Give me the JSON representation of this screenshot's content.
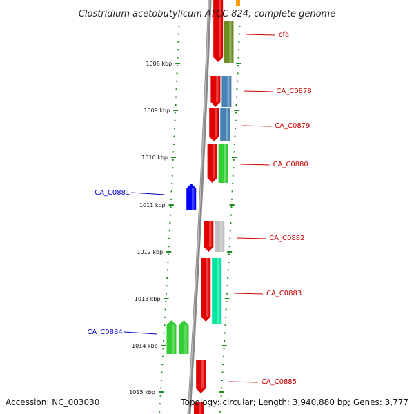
{
  "title": "Clostridium acetobutylicum ATCC 824, complete genome",
  "accession": "Accession: NC_003030",
  "topology": "Topology: circular; Length: 3,940,880 bp; Genes: 3,777",
  "ruler": {
    "unit": "kbp",
    "ticks": [
      "1008 kbp",
      "1009 kbp",
      "1010 kbp",
      "1011 kbp",
      "1012 kbp",
      "1013 kbp",
      "1014 kbp",
      "1015 kbp"
    ]
  },
  "colors": {
    "backbone": "#808080",
    "tick": "#1a8a1a",
    "forward_label": "#cc0000",
    "reverse_label": "#0000cc",
    "orf": "#e00000"
  },
  "genes": [
    {
      "label": "cfa",
      "strand": "forward",
      "color": "#6b8e23"
    },
    {
      "label": "CA_C0878",
      "strand": "forward",
      "color": "#4682b4"
    },
    {
      "label": "CA_C0879",
      "strand": "forward",
      "color": "#4682b4"
    },
    {
      "label": "CA_C0880",
      "strand": "forward",
      "color": "#32cd32"
    },
    {
      "label": "CA_C0881",
      "strand": "reverse",
      "color": "#0000ff"
    },
    {
      "label": "CA_C0882",
      "strand": "forward",
      "color": "#c0c0c0"
    },
    {
      "label": "CA_C0883",
      "strand": "forward",
      "color": "#00e5a0"
    },
    {
      "label": "CA_C0884",
      "strand": "reverse",
      "color": "#32cd32"
    },
    {
      "label": "CA_C0885",
      "strand": "forward",
      "color": "#ff0000"
    }
  ]
}
